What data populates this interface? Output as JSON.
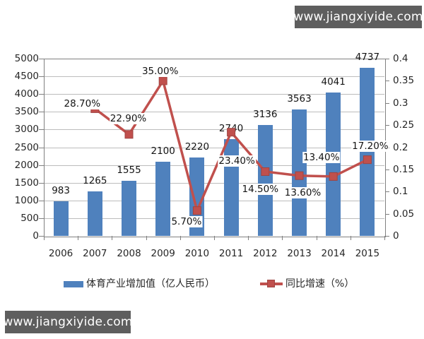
{
  "watermark": {
    "text": "www.jiangxiyide.com",
    "bg": "#5e5e5e",
    "fg": "#ffffff"
  },
  "chart_data": {
    "type": "bar+line combo",
    "categories": [
      "2006",
      "2007",
      "2008",
      "2009",
      "2010",
      "2011",
      "2012",
      "2013",
      "2014",
      "2015"
    ],
    "series": [
      {
        "name": "体育产业增加值（亿人民币）",
        "type": "bar",
        "axis": "left",
        "color": "#4f81bd",
        "values": [
          983,
          1265,
          1555,
          2100,
          2220,
          2740,
          3136,
          3563,
          4041,
          4737
        ],
        "labels": [
          "983",
          "1265",
          "1555",
          "2100",
          "2220",
          "2740",
          "3136",
          "3563",
          "4041",
          "4737"
        ]
      },
      {
        "name": "同比增速（%）",
        "type": "line",
        "axis": "right",
        "color": "#c0504d",
        "values": [
          null,
          0.287,
          0.229,
          0.35,
          0.057,
          0.234,
          0.145,
          0.136,
          0.134,
          0.172
        ],
        "labels": [
          null,
          "28.70%",
          "22.90%",
          "35.00%",
          "5.70%",
          "23.40%",
          "14.50%",
          "13.60%",
          "13.40%",
          "17.20%"
        ],
        "label_offsets": [
          null,
          [
            -18,
            -7
          ],
          [
            -1,
            -22
          ],
          [
            -4,
            -13
          ],
          [
            -15,
            16
          ],
          [
            8,
            41
          ],
          [
            -7,
            25
          ],
          [
            5,
            24
          ],
          [
            -17,
            -27
          ],
          [
            4,
            -19
          ]
        ]
      }
    ],
    "axes": {
      "left": {
        "min": 0,
        "max": 5000,
        "step": 500,
        "ticks": [
          "5000",
          "4500",
          "4000",
          "3500",
          "3000",
          "2500",
          "2000",
          "1500",
          "1000",
          "500",
          "0"
        ]
      },
      "right": {
        "min": 0,
        "max": 0.4,
        "step": 0.05,
        "ticks": [
          "0.4",
          "0.35",
          "0.3",
          "0.25",
          "0.2",
          "0.15",
          "0.1",
          "0.05",
          "0"
        ]
      }
    },
    "grid": "horizontal",
    "legend_position": "bottom",
    "title": ""
  }
}
